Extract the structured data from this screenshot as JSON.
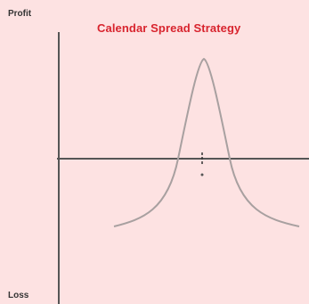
{
  "diagram": {
    "title": "Calendar Spread Strategy",
    "y_axis_top_label": "Profit",
    "y_axis_bottom_label": "Loss",
    "colors": {
      "background": "#fde2e2",
      "title": "#d8242e",
      "axis": "#555555",
      "curve": "#a8a0a0",
      "text": "#333333"
    }
  }
}
